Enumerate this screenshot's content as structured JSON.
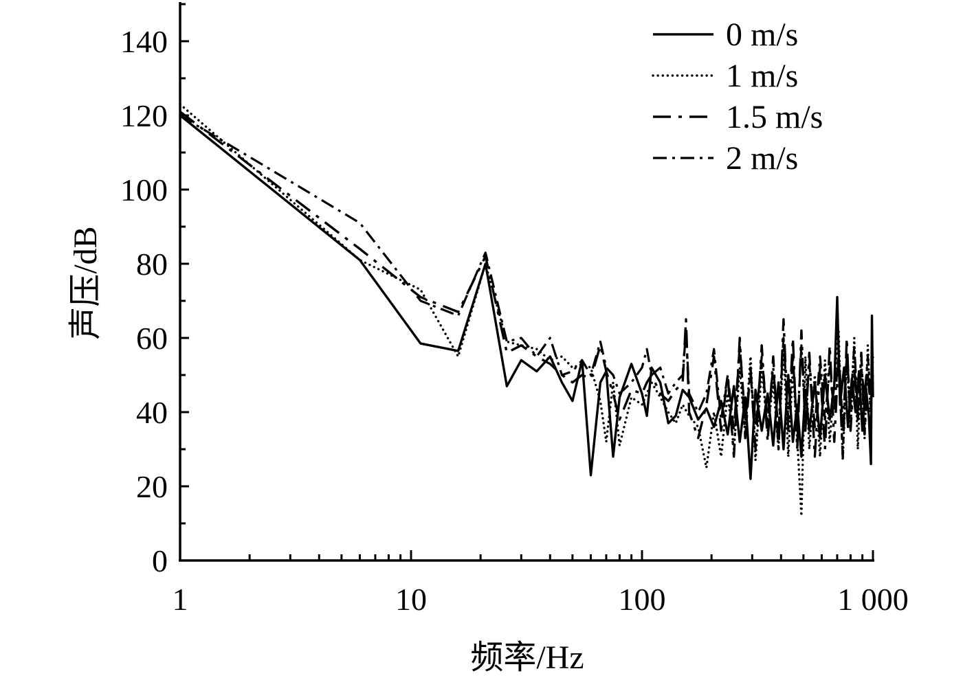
{
  "chart_data": {
    "type": "line",
    "xlabel": "频率/Hz",
    "ylabel": "声压/dB",
    "x_scale": "log",
    "xlim": [
      1,
      1000
    ],
    "ylim": [
      0,
      150
    ],
    "x_ticks": [
      1,
      10,
      100,
      1000
    ],
    "x_tick_labels": [
      "1",
      "10",
      "100",
      "1 000"
    ],
    "y_ticks": [
      0,
      20,
      40,
      60,
      80,
      100,
      120,
      140
    ],
    "y_tick_labels": [
      "0",
      "20",
      "40",
      "60",
      "80",
      "100",
      "120",
      "140"
    ],
    "grid": false,
    "legend_position": "top-right",
    "series": [
      {
        "name": "0 m/s",
        "style": "solid",
        "points": [
          [
            1,
            120
          ],
          [
            6,
            81
          ],
          [
            11,
            58.5
          ],
          [
            16,
            56.5
          ],
          [
            21,
            80
          ],
          [
            26,
            47
          ],
          [
            30,
            54
          ],
          [
            35,
            51
          ],
          [
            40,
            55
          ],
          [
            45,
            48
          ],
          [
            50,
            43
          ],
          [
            55,
            54
          ],
          [
            60,
            23
          ],
          [
            66,
            48
          ],
          [
            70,
            51
          ],
          [
            75,
            28
          ],
          [
            80,
            44
          ],
          [
            90,
            53
          ],
          [
            100,
            45
          ],
          [
            105,
            39
          ],
          [
            110,
            52
          ],
          [
            120,
            48
          ],
          [
            130,
            37
          ],
          [
            140,
            39
          ],
          [
            150,
            46
          ],
          [
            160,
            44
          ],
          [
            175,
            38
          ],
          [
            190,
            41
          ],
          [
            205,
            36
          ],
          [
            220,
            43
          ],
          [
            235,
            34
          ],
          [
            250,
            47
          ],
          [
            265,
            32
          ],
          [
            280,
            44
          ],
          [
            295,
            22
          ],
          [
            310,
            46
          ],
          [
            330,
            35
          ],
          [
            350,
            45
          ],
          [
            370,
            31
          ],
          [
            390,
            48
          ],
          [
            410,
            30
          ],
          [
            430,
            50
          ],
          [
            450,
            32
          ],
          [
            470,
            42
          ],
          [
            490,
            28
          ],
          [
            510,
            46
          ],
          [
            530,
            35
          ],
          [
            560,
            48
          ],
          [
            590,
            33
          ],
          [
            620,
            50
          ],
          [
            650,
            38
          ],
          [
            680,
            47
          ],
          [
            700,
            71
          ],
          [
            720,
            42
          ],
          [
            750,
            52
          ],
          [
            780,
            36
          ],
          [
            810,
            49
          ],
          [
            840,
            40
          ],
          [
            870,
            51
          ],
          [
            900,
            35
          ],
          [
            930,
            47
          ],
          [
            960,
            39
          ],
          [
            980,
            26
          ],
          [
            990,
            66
          ],
          [
            1000,
            44
          ]
        ]
      },
      {
        "name": "1 m/s",
        "style": "dotted",
        "points": [
          [
            1,
            123
          ],
          [
            6,
            81
          ],
          [
            11,
            73
          ],
          [
            16,
            55
          ],
          [
            21,
            80
          ],
          [
            26,
            59
          ],
          [
            30,
            58
          ],
          [
            35,
            57
          ],
          [
            40,
            54
          ],
          [
            45,
            55
          ],
          [
            50,
            52
          ],
          [
            55,
            53
          ],
          [
            60,
            52
          ],
          [
            66,
            43
          ],
          [
            70,
            32
          ],
          [
            75,
            48
          ],
          [
            80,
            31
          ],
          [
            90,
            44
          ],
          [
            100,
            42
          ],
          [
            105,
            45
          ],
          [
            110,
            48
          ],
          [
            120,
            44
          ],
          [
            130,
            40
          ],
          [
            140,
            37
          ],
          [
            150,
            42
          ],
          [
            160,
            39
          ],
          [
            175,
            36
          ],
          [
            190,
            25
          ],
          [
            205,
            40
          ],
          [
            220,
            28
          ],
          [
            235,
            45
          ],
          [
            250,
            30
          ],
          [
            265,
            52
          ],
          [
            280,
            34
          ],
          [
            295,
            55
          ],
          [
            310,
            27
          ],
          [
            330,
            52
          ],
          [
            350,
            35
          ],
          [
            370,
            48
          ],
          [
            390,
            30
          ],
          [
            410,
            58
          ],
          [
            430,
            28
          ],
          [
            450,
            52
          ],
          [
            470,
            33
          ],
          [
            490,
            12
          ],
          [
            510,
            55
          ],
          [
            530,
            30
          ],
          [
            560,
            50
          ],
          [
            590,
            28
          ],
          [
            620,
            54
          ],
          [
            650,
            32
          ],
          [
            680,
            48
          ],
          [
            710,
            62
          ],
          [
            740,
            27
          ],
          [
            770,
            55
          ],
          [
            800,
            35
          ],
          [
            830,
            60
          ],
          [
            860,
            30
          ],
          [
            890,
            54
          ],
          [
            920,
            33
          ],
          [
            950,
            58
          ],
          [
            975,
            40
          ],
          [
            1000,
            55
          ]
        ]
      },
      {
        "name": "1.5 m/s",
        "style": "dashed",
        "points": [
          [
            1,
            121
          ],
          [
            6,
            84
          ],
          [
            11,
            71
          ],
          [
            16,
            67
          ],
          [
            21,
            82
          ],
          [
            26,
            56
          ],
          [
            30,
            58
          ],
          [
            35,
            55
          ],
          [
            40,
            53
          ],
          [
            45,
            50
          ],
          [
            50,
            48
          ],
          [
            55,
            50
          ],
          [
            60,
            49
          ],
          [
            66,
            58
          ],
          [
            70,
            51
          ],
          [
            75,
            45
          ],
          [
            80,
            38
          ],
          [
            90,
            46
          ],
          [
            100,
            45
          ],
          [
            105,
            48
          ],
          [
            110,
            50
          ],
          [
            120,
            45
          ],
          [
            130,
            43
          ],
          [
            140,
            46
          ],
          [
            150,
            48
          ],
          [
            155,
            65
          ],
          [
            160,
            40
          ],
          [
            175,
            33
          ],
          [
            190,
            42
          ],
          [
            205,
            55
          ],
          [
            220,
            35
          ],
          [
            235,
            50
          ],
          [
            250,
            28
          ],
          [
            265,
            60
          ],
          [
            280,
            33
          ],
          [
            295,
            52
          ],
          [
            310,
            30
          ],
          [
            330,
            58
          ],
          [
            350,
            32
          ],
          [
            370,
            55
          ],
          [
            390,
            30
          ],
          [
            410,
            65
          ],
          [
            430,
            35
          ],
          [
            450,
            60
          ],
          [
            470,
            30
          ],
          [
            490,
            62
          ],
          [
            510,
            35
          ],
          [
            530,
            56
          ],
          [
            560,
            28
          ],
          [
            590,
            52
          ],
          [
            620,
            30
          ],
          [
            650,
            58
          ],
          [
            680,
            32
          ],
          [
            710,
            55
          ],
          [
            740,
            28
          ],
          [
            770,
            60
          ],
          [
            800,
            35
          ],
          [
            830,
            52
          ],
          [
            860,
            38
          ],
          [
            890,
            56
          ],
          [
            920,
            34
          ],
          [
            950,
            50
          ],
          [
            975,
            42
          ],
          [
            1000,
            48
          ]
        ]
      },
      {
        "name": "2 m/s",
        "style": "dashdot",
        "points": [
          [
            1,
            120
          ],
          [
            6,
            91
          ],
          [
            11,
            70
          ],
          [
            16,
            66
          ],
          [
            21,
            83
          ],
          [
            26,
            59
          ],
          [
            30,
            60
          ],
          [
            35,
            55
          ],
          [
            40,
            60
          ],
          [
            45,
            50
          ],
          [
            50,
            51
          ],
          [
            55,
            54
          ],
          [
            60,
            50
          ],
          [
            66,
            59
          ],
          [
            70,
            52
          ],
          [
            75,
            50
          ],
          [
            80,
            45
          ],
          [
            90,
            48
          ],
          [
            100,
            52
          ],
          [
            105,
            57
          ],
          [
            110,
            50
          ],
          [
            120,
            52
          ],
          [
            130,
            45
          ],
          [
            140,
            48
          ],
          [
            150,
            50
          ],
          [
            155,
            62
          ],
          [
            160,
            45
          ],
          [
            175,
            40
          ],
          [
            190,
            45
          ],
          [
            205,
            57
          ],
          [
            220,
            38
          ],
          [
            235,
            50
          ],
          [
            250,
            35
          ],
          [
            265,
            58
          ],
          [
            280,
            38
          ],
          [
            295,
            50
          ],
          [
            310,
            36
          ],
          [
            330,
            55
          ],
          [
            350,
            38
          ],
          [
            370,
            52
          ],
          [
            390,
            35
          ],
          [
            410,
            60
          ],
          [
            430,
            38
          ],
          [
            450,
            55
          ],
          [
            470,
            35
          ],
          [
            490,
            58
          ],
          [
            510,
            38
          ],
          [
            530,
            53
          ],
          [
            560,
            36
          ],
          [
            590,
            55
          ],
          [
            620,
            38
          ],
          [
            650,
            52
          ],
          [
            680,
            40
          ],
          [
            710,
            57
          ],
          [
            740,
            36
          ],
          [
            770,
            55
          ],
          [
            800,
            42
          ],
          [
            830,
            58
          ],
          [
            860,
            40
          ],
          [
            890,
            52
          ],
          [
            920,
            44
          ],
          [
            950,
            55
          ],
          [
            975,
            45
          ],
          [
            1000,
            50
          ]
        ]
      }
    ]
  }
}
